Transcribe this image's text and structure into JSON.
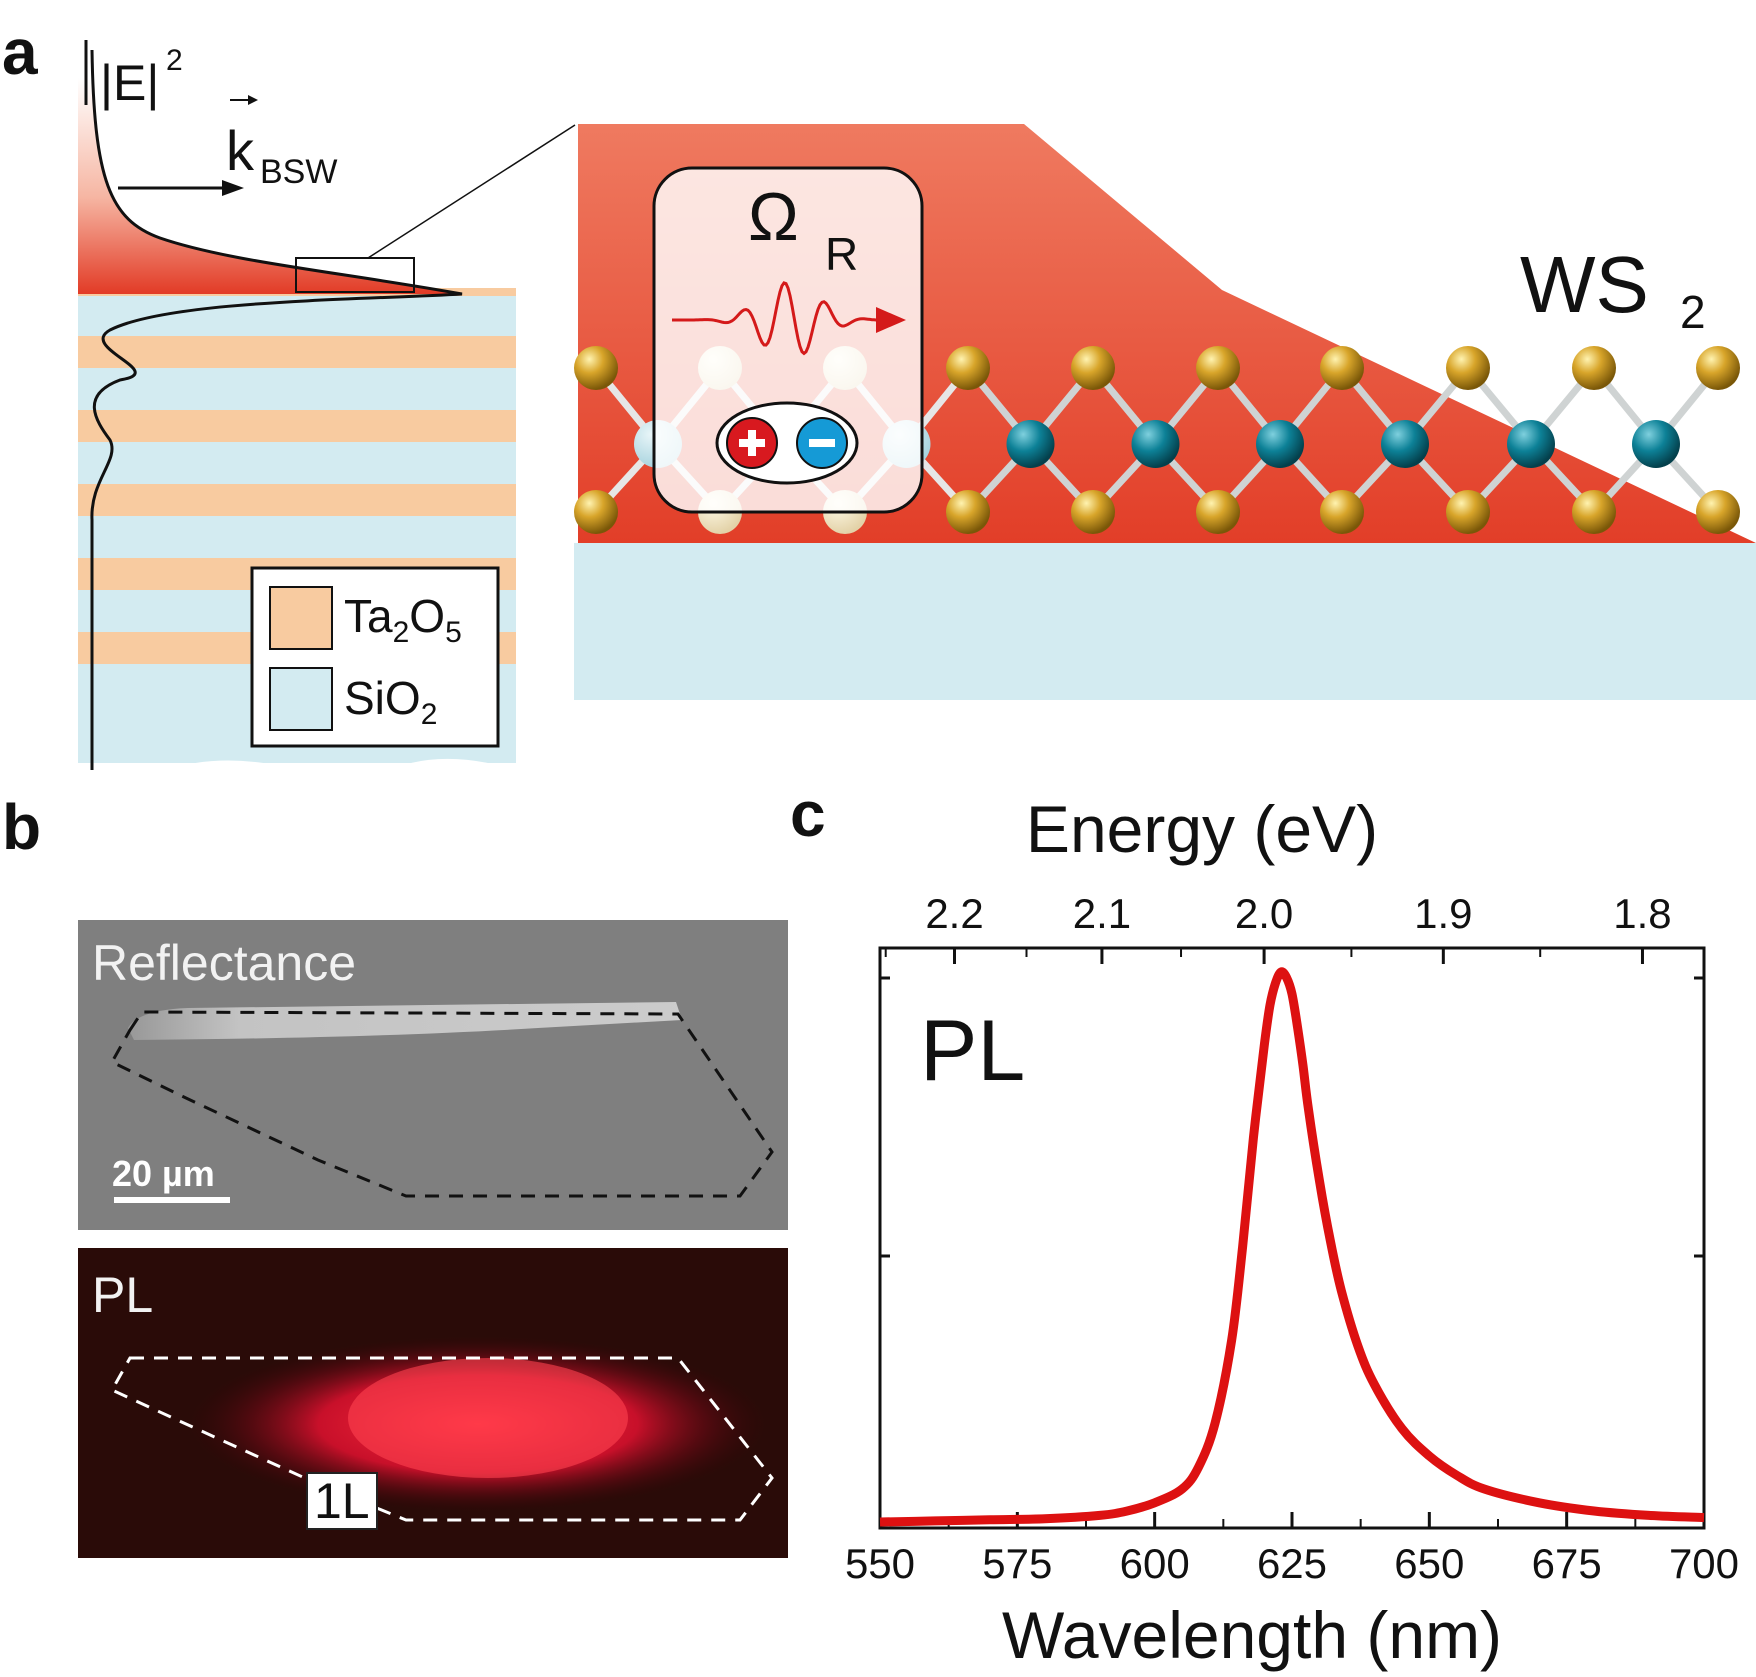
{
  "panel_a": {
    "letter": "a",
    "field_label": "|E|",
    "field_sup": "2",
    "k_label": "k",
    "k_sub": "BSW",
    "omega_label": "Ω",
    "omega_sub": "R",
    "ws2_label": "WS",
    "ws2_sub": "2",
    "legend": [
      {
        "name": "Ta",
        "sub1": "2",
        "mid": "O",
        "sub2": "5",
        "color": "#f8cba0"
      },
      {
        "name": "SiO",
        "sub1": "2",
        "mid": "",
        "sub2": "",
        "color": "#d3ebf1"
      }
    ],
    "colors": {
      "plasmon_red": "#e64030",
      "ta2o5": "#f8cba0",
      "sio2": "#d3ebf1",
      "sulfur": "#c8a02a",
      "tungsten": "#0f7f90"
    }
  },
  "panel_b": {
    "letter": "b",
    "reflectance_label": "Reflectance",
    "scale_bar_label": "20 µm",
    "pl_label": "PL",
    "layer_label": "1L"
  },
  "panel_c": {
    "letter": "c",
    "plot_label": "PL"
  },
  "chart_data": {
    "type": "line",
    "title": "",
    "xlabel": "Wavelength (nm)",
    "x2label": "Energy (eV)",
    "ylabel": "",
    "xlim": [
      550,
      700
    ],
    "xticks": [
      550,
      575,
      600,
      625,
      650,
      675,
      700
    ],
    "x2ticks": [
      2.2,
      2.1,
      2.0,
      1.9,
      1.8
    ],
    "series": [
      {
        "color": "#dd1111",
        "x": [
          550,
          560,
          570,
          580,
          590,
          595,
          600,
          605,
          608,
          611,
          614,
          616,
          618,
          620,
          621,
          622,
          623,
          624,
          625,
          626,
          627,
          628,
          630,
          632,
          634,
          637,
          640,
          645,
          650,
          655,
          660,
          670,
          680,
          690,
          700
        ],
        "y": [
          0.0,
          0.002,
          0.004,
          0.006,
          0.012,
          0.02,
          0.035,
          0.06,
          0.1,
          0.18,
          0.33,
          0.5,
          0.7,
          0.87,
          0.94,
          0.98,
          1.0,
          0.99,
          0.96,
          0.9,
          0.83,
          0.75,
          0.62,
          0.51,
          0.42,
          0.32,
          0.25,
          0.17,
          0.12,
          0.085,
          0.06,
          0.035,
          0.02,
          0.012,
          0.008
        ]
      }
    ]
  }
}
